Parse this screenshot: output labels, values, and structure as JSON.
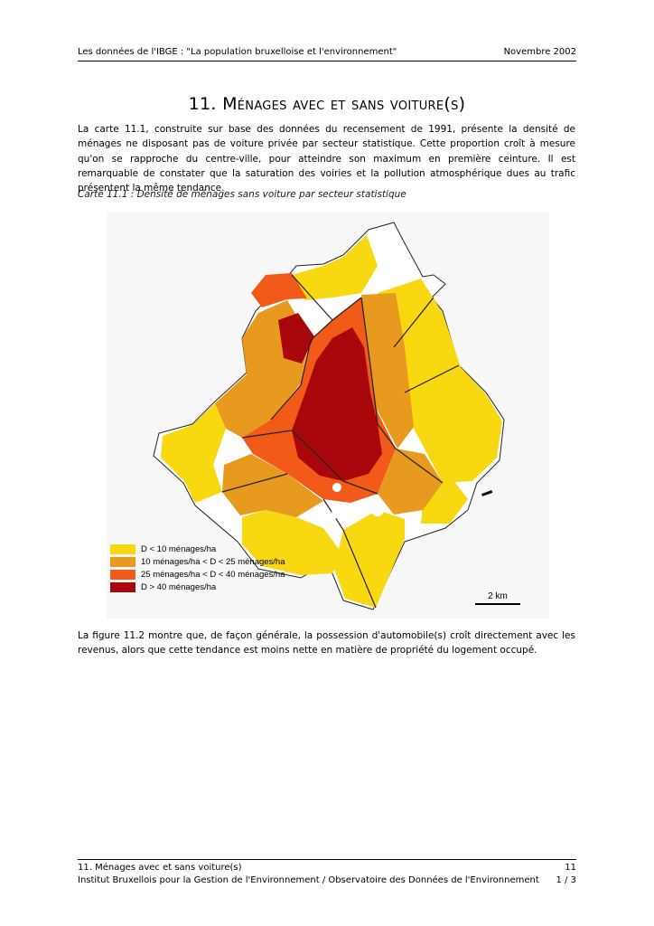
{
  "header": {
    "left": "Les données de l'IBGE : \"La population bruxelloise et l'environnement\"",
    "right": "Novembre 2002"
  },
  "title": {
    "number": "11.",
    "text": "Ménages avec et sans voiture(s)"
  },
  "intro": "La carte 11.1, construite sur base des données du recensement de 1991, présente la densité de ménages ne disposant pas de voiture privée par secteur statistique. Cette proportion croît à mesure qu'on se rapproche du centre-ville, pour atteindre son maximum en première ceinture. Il est remarquable de constater que la saturation des voiries et la pollution atmosphérique dues au trafic présentent la même tendance.",
  "caption": "Carte 11.1 : Densité de ménages sans voiture par secteur statistique",
  "map": {
    "legend": [
      {
        "label": "D < 10 ménages/ha",
        "color": "#f7d811"
      },
      {
        "label": "10 ménages/ha < D < 25 ménages/ha",
        "color": "#e79a1d"
      },
      {
        "label": "25 ménages/ha < D < 40 ménages/ha",
        "color": "#f15a18"
      },
      {
        "label": "D > 40 ménages/ha",
        "color": "#a8080b"
      }
    ],
    "scale_label": "2 km"
  },
  "outro": "La figure 11.2 montre que, de façon générale, la possession d'automobile(s) croît directement avec les revenus, alors que cette tendance est moins nette en matière de propriété du logement occupé.",
  "footer": {
    "line1_left": "11. Ménages avec et sans voiture(s)",
    "line1_right": "11",
    "line2_left": "Institut Bruxellois pour la Gestion de l'Environnement / Observatoire des Données de l'Environnement",
    "line2_right": "1 / 3"
  }
}
